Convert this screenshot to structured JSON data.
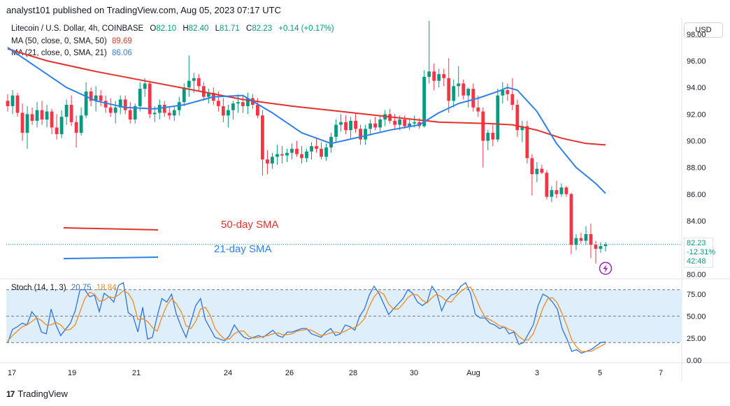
{
  "header": {
    "published": "analyst101 published on TradingView.com, Aug 05, 2023 07:17 UTC"
  },
  "legend": {
    "symbol": "Litecoin / U.S. Dollar, 4h, COINBASE",
    "o_label": "O",
    "o": "82.10",
    "h_label": "H",
    "h": "82.40",
    "l_label": "L",
    "l": "81.71",
    "c_label": "C",
    "c": "82.23",
    "change": "+0.14 (+0.17%)",
    "ma50_label": "MA (50, close, 0, SMA, 50)",
    "ma50_value": "89.69",
    "ma21_label": "MA (21, close, 0, SMA, 21)",
    "ma21_value": "86.06",
    "stoch_label": "Stoch (14, 1, 3)",
    "stoch_k": "20.75",
    "stoch_d": "18.84"
  },
  "currency_button": "USD",
  "price_tag": {
    "price": "82.23",
    "change_pct": "-12.31%",
    "countdown": "42:48"
  },
  "annotations": {
    "sma50": "50-day SMA",
    "sma21": "21-day SMA"
  },
  "footer": {
    "brand": "TradingView",
    "brand_mark": "17"
  },
  "colors": {
    "up": "#089981",
    "down": "#f23645",
    "ma50": "#e5312b",
    "ma21": "#2f80e8",
    "stoch_k": "#2f72e0",
    "stoch_d": "#f08a24",
    "stoch_band": "#dfeefb",
    "last_price_line": "#089981"
  },
  "chart_data": [
    {
      "type": "candlestick",
      "title": "Litecoin / U.S. Dollar, 4h, COINBASE",
      "y_ticks": [
        "80.00",
        "82.00",
        "84.00",
        "86.00",
        "88.00",
        "90.00",
        "92.00",
        "94.00",
        "96.00",
        "98.00"
      ],
      "x_ticks": [
        "17",
        "19",
        "21",
        "24",
        "26",
        "28",
        "30",
        "Aug",
        "3",
        "5",
        "7"
      ],
      "ylim": [
        79.7,
        99.2
      ],
      "last_price": 82.23,
      "candles": [
        [
          93.0,
          93.5,
          92.2,
          92.6
        ],
        [
          92.6,
          93.8,
          92.0,
          93.4
        ],
        [
          93.4,
          93.6,
          91.8,
          92.1
        ],
        [
          92.1,
          92.8,
          90.0,
          90.6
        ],
        [
          90.6,
          92.6,
          89.4,
          92.0
        ],
        [
          92.0,
          92.5,
          91.2,
          91.5
        ],
        [
          91.5,
          92.9,
          91.0,
          92.3
        ],
        [
          92.3,
          93.0,
          91.2,
          91.6
        ],
        [
          91.6,
          92.7,
          91.0,
          92.2
        ],
        [
          92.2,
          92.4,
          90.5,
          91.0
        ],
        [
          91.0,
          92.0,
          90.1,
          90.5
        ],
        [
          90.5,
          92.3,
          90.2,
          91.8
        ],
        [
          91.8,
          93.1,
          91.2,
          92.7
        ],
        [
          92.7,
          93.4,
          91.1,
          91.4
        ],
        [
          91.4,
          91.9,
          89.5,
          90.6
        ],
        [
          90.6,
          92.5,
          90.4,
          91.9
        ],
        [
          91.9,
          94.4,
          91.7,
          93.7
        ],
        [
          93.7,
          94.0,
          92.6,
          93.0
        ],
        [
          93.0,
          94.1,
          92.2,
          93.4
        ],
        [
          93.4,
          93.8,
          92.6,
          93.0
        ],
        [
          93.0,
          93.4,
          92.1,
          92.5
        ],
        [
          92.5,
          93.2,
          91.8,
          92.1
        ],
        [
          92.1,
          93.0,
          91.3,
          92.5
        ],
        [
          92.5,
          93.4,
          92.0,
          93.1
        ],
        [
          93.1,
          93.4,
          92.0,
          92.3
        ],
        [
          92.3,
          92.9,
          91.3,
          91.6
        ],
        [
          91.6,
          92.8,
          91.3,
          92.6
        ],
        [
          92.6,
          94.4,
          92.2,
          93.9
        ],
        [
          93.9,
          94.7,
          93.3,
          94.3
        ],
        [
          94.3,
          94.5,
          91.7,
          92.0
        ],
        [
          92.0,
          92.6,
          91.4,
          92.1
        ],
        [
          92.1,
          93.1,
          91.6,
          92.7
        ],
        [
          92.7,
          93.0,
          91.8,
          92.1
        ],
        [
          92.1,
          92.6,
          91.6,
          91.9
        ],
        [
          91.9,
          92.6,
          91.5,
          92.3
        ],
        [
          92.3,
          93.3,
          91.9,
          92.9
        ],
        [
          92.9,
          94.3,
          92.6,
          94.0
        ],
        [
          94.0,
          96.4,
          93.3,
          94.5
        ],
        [
          94.5,
          95.1,
          93.6,
          94.7
        ],
        [
          94.7,
          95.0,
          93.7,
          94.1
        ],
        [
          94.1,
          94.4,
          93.0,
          93.3
        ],
        [
          93.3,
          93.9,
          92.8,
          93.6
        ],
        [
          93.6,
          94.0,
          92.7,
          93.0
        ],
        [
          93.0,
          93.7,
          92.2,
          92.6
        ],
        [
          92.6,
          93.2,
          91.4,
          91.9
        ],
        [
          91.9,
          92.7,
          91.0,
          92.3
        ],
        [
          92.3,
          93.0,
          91.6,
          92.8
        ],
        [
          92.8,
          93.5,
          92.1,
          92.9
        ],
        [
          92.9,
          93.4,
          92.1,
          92.6
        ],
        [
          92.6,
          93.6,
          92.0,
          93.2
        ],
        [
          93.2,
          93.5,
          92.4,
          92.7
        ],
        [
          92.7,
          93.2,
          91.7,
          91.9
        ],
        [
          91.9,
          92.3,
          87.4,
          88.6
        ],
        [
          88.6,
          89.3,
          87.5,
          88.3
        ],
        [
          88.3,
          89.1,
          87.9,
          88.8
        ],
        [
          88.8,
          89.7,
          88.2,
          89.0
        ],
        [
          89.0,
          89.6,
          88.3,
          88.9
        ],
        [
          88.9,
          89.4,
          88.4,
          89.1
        ],
        [
          89.1,
          89.8,
          88.6,
          89.4
        ],
        [
          89.4,
          90.0,
          88.8,
          89.0
        ],
        [
          89.0,
          89.6,
          88.3,
          88.7
        ],
        [
          88.7,
          89.4,
          88.4,
          89.2
        ],
        [
          89.2,
          89.9,
          88.6,
          89.6
        ],
        [
          89.6,
          90.2,
          89.1,
          89.4
        ],
        [
          89.4,
          89.9,
          88.6,
          88.8
        ],
        [
          88.8,
          89.8,
          88.5,
          89.5
        ],
        [
          89.5,
          90.6,
          89.1,
          90.3
        ],
        [
          90.3,
          91.6,
          89.9,
          91.2
        ],
        [
          91.2,
          92.0,
          90.7,
          91.4
        ],
        [
          91.4,
          91.9,
          90.5,
          90.8
        ],
        [
          90.8,
          91.8,
          90.2,
          91.5
        ],
        [
          91.5,
          92.1,
          90.6,
          90.9
        ],
        [
          90.9,
          91.2,
          89.7,
          90.1
        ],
        [
          90.1,
          91.2,
          89.7,
          90.9
        ],
        [
          90.9,
          91.6,
          90.4,
          91.3
        ],
        [
          91.3,
          91.8,
          90.8,
          91.0
        ],
        [
          91.0,
          91.9,
          90.7,
          91.6
        ],
        [
          91.6,
          92.3,
          91.1,
          92.0
        ],
        [
          92.0,
          92.4,
          91.3,
          91.5
        ],
        [
          91.5,
          92.0,
          90.9,
          91.2
        ],
        [
          91.2,
          91.9,
          90.8,
          91.6
        ],
        [
          91.6,
          91.9,
          90.9,
          91.1
        ],
        [
          91.1,
          91.6,
          90.8,
          91.3
        ],
        [
          91.3,
          91.9,
          91.0,
          91.4
        ],
        [
          91.4,
          91.7,
          90.9,
          91.1
        ],
        [
          91.1,
          95.3,
          91.0,
          94.8
        ],
        [
          94.8,
          99.0,
          94.3,
          95.2
        ],
        [
          95.2,
          95.8,
          93.8,
          94.5
        ],
        [
          94.5,
          95.4,
          94.0,
          95.0
        ],
        [
          95.0,
          95.4,
          94.1,
          94.7
        ],
        [
          94.7,
          96.2,
          92.1,
          93.0
        ],
        [
          93.0,
          94.6,
          92.5,
          94.1
        ],
        [
          94.1,
          95.6,
          93.3,
          94.3
        ],
        [
          94.3,
          94.6,
          93.1,
          93.4
        ],
        [
          93.4,
          94.0,
          92.5,
          93.9
        ],
        [
          93.9,
          94.3,
          92.2,
          92.5
        ],
        [
          92.5,
          93.4,
          91.8,
          92.2
        ],
        [
          92.2,
          92.5,
          88.0,
          90.0
        ],
        [
          90.0,
          90.8,
          89.3,
          90.6
        ],
        [
          90.6,
          91.2,
          89.6,
          90.1
        ],
        [
          90.1,
          93.9,
          89.9,
          93.4
        ],
        [
          93.4,
          94.4,
          92.8,
          93.8
        ],
        [
          93.8,
          94.3,
          93.0,
          93.5
        ],
        [
          93.5,
          94.7,
          92.3,
          92.7
        ],
        [
          92.7,
          93.1,
          90.3,
          90.8
        ],
        [
          90.8,
          91.5,
          89.9,
          91.1
        ],
        [
          91.1,
          91.5,
          88.3,
          88.7
        ],
        [
          88.7,
          89.0,
          85.9,
          87.5
        ],
        [
          87.5,
          88.4,
          86.9,
          87.9
        ],
        [
          87.9,
          88.2,
          87.5,
          87.6
        ],
        [
          87.6,
          87.8,
          85.6,
          85.8
        ],
        [
          85.8,
          86.6,
          85.4,
          86.3
        ],
        [
          86.3,
          87.0,
          85.7,
          86.0
        ],
        [
          86.0,
          86.8,
          85.8,
          86.5
        ],
        [
          86.5,
          86.6,
          85.8,
          86.0
        ],
        [
          86.0,
          86.1,
          81.5,
          82.2
        ],
        [
          82.2,
          83.0,
          81.8,
          82.7
        ],
        [
          82.7,
          83.1,
          82.3,
          82.5
        ],
        [
          82.5,
          83.6,
          82.2,
          83.0
        ],
        [
          83.0,
          83.8,
          81.2,
          82.2
        ],
        [
          82.2,
          82.5,
          80.8,
          81.9
        ],
        [
          81.9,
          82.4,
          81.6,
          82.1
        ],
        [
          82.1,
          82.4,
          81.7,
          82.23
        ]
      ],
      "series": [
        {
          "name": "MA (50, close, 0, SMA, 50)",
          "color": "#e5312b",
          "points": [
            [
              0,
              96.9
            ],
            [
              8,
              96.0
            ],
            [
              18,
              95.2
            ],
            [
              28,
              94.5
            ],
            [
              38,
              93.8
            ],
            [
              48,
              93.1
            ],
            [
              58,
              92.6
            ],
            [
              68,
              92.2
            ],
            [
              78,
              91.8
            ],
            [
              88,
              91.4
            ],
            [
              98,
              91.3
            ],
            [
              103,
              91.2
            ],
            [
              108,
              90.8
            ],
            [
              113,
              90.2
            ],
            [
              118,
              89.8
            ],
            [
              122,
              89.69
            ]
          ]
        },
        {
          "name": "MA (21, close, 0, SMA, 21)",
          "color": "#2f80e8",
          "points": [
            [
              0,
              97.0
            ],
            [
              6,
              95.5
            ],
            [
              12,
              94.0
            ],
            [
              18,
              93.0
            ],
            [
              24,
              92.5
            ],
            [
              30,
              92.4
            ],
            [
              36,
              92.7
            ],
            [
              42,
              93.3
            ],
            [
              48,
              93.4
            ],
            [
              54,
              92.1
            ],
            [
              60,
              90.6
            ],
            [
              66,
              89.8
            ],
            [
              72,
              90.3
            ],
            [
              78,
              90.8
            ],
            [
              84,
              91.2
            ],
            [
              88,
              92.1
            ],
            [
              92,
              92.8
            ],
            [
              96,
              93.2
            ],
            [
              100,
              93.7
            ],
            [
              102,
              94.0
            ],
            [
              104,
              93.8
            ],
            [
              108,
              92.2
            ],
            [
              112,
              89.8
            ],
            [
              116,
              88.0
            ],
            [
              120,
              86.8
            ],
            [
              122,
              86.06
            ]
          ]
        }
      ]
    },
    {
      "type": "line",
      "title": "Stoch (14, 1, 3)",
      "y_ticks": [
        "0.00",
        "25.00",
        "50.00",
        "75.00"
      ],
      "band": [
        20,
        80
      ],
      "ylim": [
        -2,
        90
      ],
      "series": [
        {
          "name": "%K",
          "color": "#2f72e0",
          "values": [
            20,
            35,
            38,
            42,
            40,
            55,
            48,
            32,
            30,
            58,
            40,
            28,
            35,
            42,
            56,
            80,
            80,
            72,
            74,
            55,
            76,
            72,
            66,
            85,
            88,
            54,
            50,
            32,
            60,
            24,
            26,
            50,
            70,
            66,
            75,
            52,
            38,
            26,
            44,
            62,
            70,
            46,
            36,
            26,
            24,
            22,
            28,
            40,
            32,
            26,
            24,
            26,
            28,
            26,
            30,
            34,
            28,
            26,
            32,
            32,
            34,
            36,
            36,
            30,
            28,
            26,
            32,
            36,
            28,
            30,
            40,
            38,
            34,
            50,
            58,
            74,
            84,
            76,
            64,
            52,
            58,
            64,
            70,
            80,
            76,
            66,
            62,
            66,
            84,
            76,
            56,
            68,
            74,
            76,
            84,
            88,
            76,
            52,
            48,
            48,
            42,
            40,
            36,
            38,
            30,
            32,
            18,
            20,
            30,
            40,
            62,
            75,
            72,
            66,
            58,
            36,
            24,
            10,
            12,
            8,
            10,
            12,
            16,
            20,
            20.75
          ]
        },
        {
          "name": "%D",
          "color": "#f08a24",
          "values": [
            22,
            28,
            33,
            38,
            40,
            44,
            48,
            45,
            40,
            40,
            43,
            40,
            34,
            35,
            40,
            55,
            70,
            77,
            75,
            67,
            68,
            72,
            71,
            74,
            79,
            76,
            67,
            46,
            47,
            44,
            37,
            33,
            49,
            62,
            70,
            64,
            55,
            39,
            36,
            44,
            58,
            60,
            51,
            36,
            29,
            24,
            24,
            30,
            33,
            33,
            27,
            25,
            26,
            27,
            28,
            30,
            31,
            29,
            29,
            30,
            33,
            34,
            35,
            34,
            31,
            28,
            29,
            31,
            32,
            31,
            33,
            36,
            37,
            41,
            47,
            61,
            72,
            78,
            75,
            64,
            58,
            58,
            64,
            71,
            75,
            74,
            68,
            65,
            71,
            75,
            72,
            67,
            66,
            73,
            78,
            82,
            83,
            72,
            59,
            49,
            46,
            43,
            39,
            38,
            35,
            33,
            27,
            23,
            23,
            30,
            44,
            59,
            70,
            71,
            65,
            53,
            39,
            23,
            15,
            10,
            10,
            10,
            13,
            16,
            18.84
          ]
        }
      ]
    }
  ]
}
